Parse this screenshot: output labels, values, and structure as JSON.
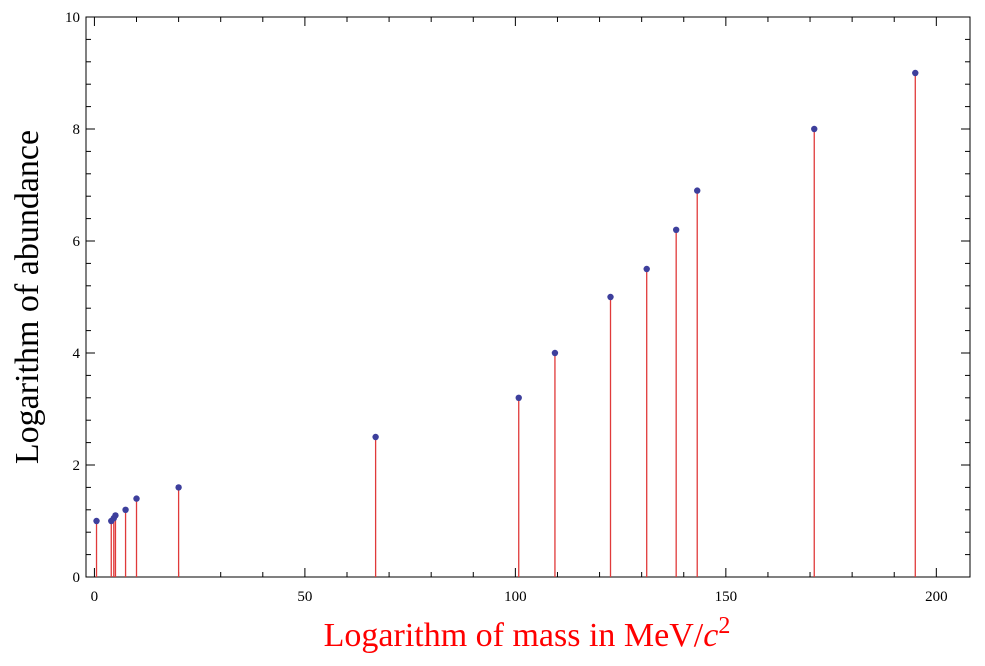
{
  "chart_data": {
    "type": "stem",
    "title": "",
    "xlabel": {
      "prefix": "Logarithm of mass in MeV/",
      "var": "c",
      "sup": "2"
    },
    "ylabel": "Logarithm of abundance",
    "xlim": [
      -2,
      208
    ],
    "ylim": [
      0,
      10
    ],
    "xticks": [
      0,
      50,
      100,
      150,
      200
    ],
    "yticks": [
      0,
      2,
      4,
      6,
      8,
      10
    ],
    "x_minor_step": 10,
    "y_minor_step": 0.4,
    "grid": false,
    "colors": {
      "stem": "#e03a3a",
      "marker": "#3d3f9c",
      "xlabel": "#ff0000",
      "axis": "#000000"
    },
    "points": [
      {
        "x": 0.5,
        "y": 1.0
      },
      {
        "x": 4,
        "y": 1.0
      },
      {
        "x": 4.6,
        "y": 1.05
      },
      {
        "x": 5,
        "y": 1.1
      },
      {
        "x": 7.4,
        "y": 1.2
      },
      {
        "x": 10,
        "y": 1.4
      },
      {
        "x": 20,
        "y": 1.6
      },
      {
        "x": 66.8,
        "y": 2.5
      },
      {
        "x": 100.8,
        "y": 3.2
      },
      {
        "x": 109.4,
        "y": 4.0
      },
      {
        "x": 122.6,
        "y": 5.0
      },
      {
        "x": 131.2,
        "y": 5.5
      },
      {
        "x": 138.2,
        "y": 6.2
      },
      {
        "x": 143.2,
        "y": 6.9
      },
      {
        "x": 171,
        "y": 8.0
      },
      {
        "x": 195,
        "y": 9.0
      }
    ]
  }
}
